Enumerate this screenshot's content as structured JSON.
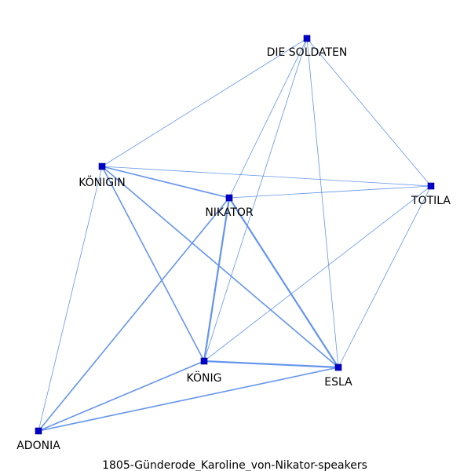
{
  "caption": "1805-Günderode_Karoline_von-Nikator-speakers",
  "colors": {
    "edge": "#6495ED",
    "node": "#0000CD",
    "node_border": "#000080",
    "label": "#000000"
  },
  "nodes": [
    {
      "id": "DIE SOLDATEN",
      "label": "DIE SOLDATEN"
    },
    {
      "id": "KÖNIGIN",
      "label": "KÖNIGIN"
    },
    {
      "id": "NIKATOR",
      "label": "NIKATOR"
    },
    {
      "id": "TOTILA",
      "label": "TOTILA"
    },
    {
      "id": "KÖNIG",
      "label": "KÖNIG"
    },
    {
      "id": "ESLA",
      "label": "ESLA"
    },
    {
      "id": "ADONIA",
      "label": "ADONIA"
    }
  ],
  "edges": [
    {
      "source": "DIE SOLDATEN",
      "target": "KÖNIGIN",
      "weight": 1
    },
    {
      "source": "DIE SOLDATEN",
      "target": "NIKATOR",
      "weight": 1
    },
    {
      "source": "DIE SOLDATEN",
      "target": "KÖNIG",
      "weight": 1
    },
    {
      "source": "DIE SOLDATEN",
      "target": "ESLA",
      "weight": 1
    },
    {
      "source": "DIE SOLDATEN",
      "target": "TOTILA",
      "weight": 1
    },
    {
      "source": "KÖNIGIN",
      "target": "NIKATOR",
      "weight": 2
    },
    {
      "source": "KÖNIGIN",
      "target": "TOTILA",
      "weight": 1
    },
    {
      "source": "KÖNIGIN",
      "target": "KÖNIG",
      "weight": 2
    },
    {
      "source": "KÖNIGIN",
      "target": "ESLA",
      "weight": 2
    },
    {
      "source": "KÖNIGIN",
      "target": "ADONIA",
      "weight": 1
    },
    {
      "source": "NIKATOR",
      "target": "TOTILA",
      "weight": 1
    },
    {
      "source": "NIKATOR",
      "target": "KÖNIG",
      "weight": 3
    },
    {
      "source": "NIKATOR",
      "target": "ESLA",
      "weight": 3
    },
    {
      "source": "NIKATOR",
      "target": "ADONIA",
      "weight": 2
    },
    {
      "source": "TOTILA",
      "target": "KÖNIG",
      "weight": 1
    },
    {
      "source": "TOTILA",
      "target": "ESLA",
      "weight": 1
    },
    {
      "source": "KÖNIG",
      "target": "ESLA",
      "weight": 3
    },
    {
      "source": "KÖNIG",
      "target": "ADONIA",
      "weight": 2
    },
    {
      "source": "ESLA",
      "target": "ADONIA",
      "weight": 2
    }
  ]
}
